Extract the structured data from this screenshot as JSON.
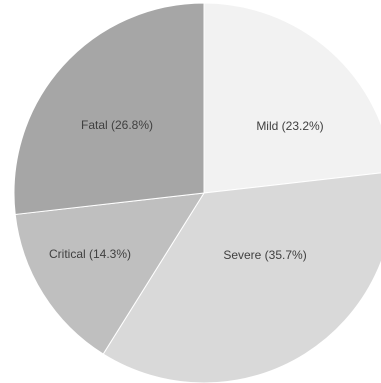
{
  "chart_data": {
    "type": "pie",
    "title": "",
    "labels": [
      "Mild",
      "Severe",
      "Critical",
      "Fatal"
    ],
    "label_texts": [
      "Mild (23.2%)",
      "Severe (35.7%)",
      "Critical (14.3%)",
      "Fatal (26.8%)"
    ],
    "values": [
      23.2,
      35.7,
      14.3,
      26.8
    ],
    "colors": [
      "#f2f2f2",
      "#d9d9d9",
      "#bfbfbf",
      "#a6a6a6"
    ],
    "start": "12 o'clock",
    "direction": "clockwise",
    "legend": "none"
  }
}
